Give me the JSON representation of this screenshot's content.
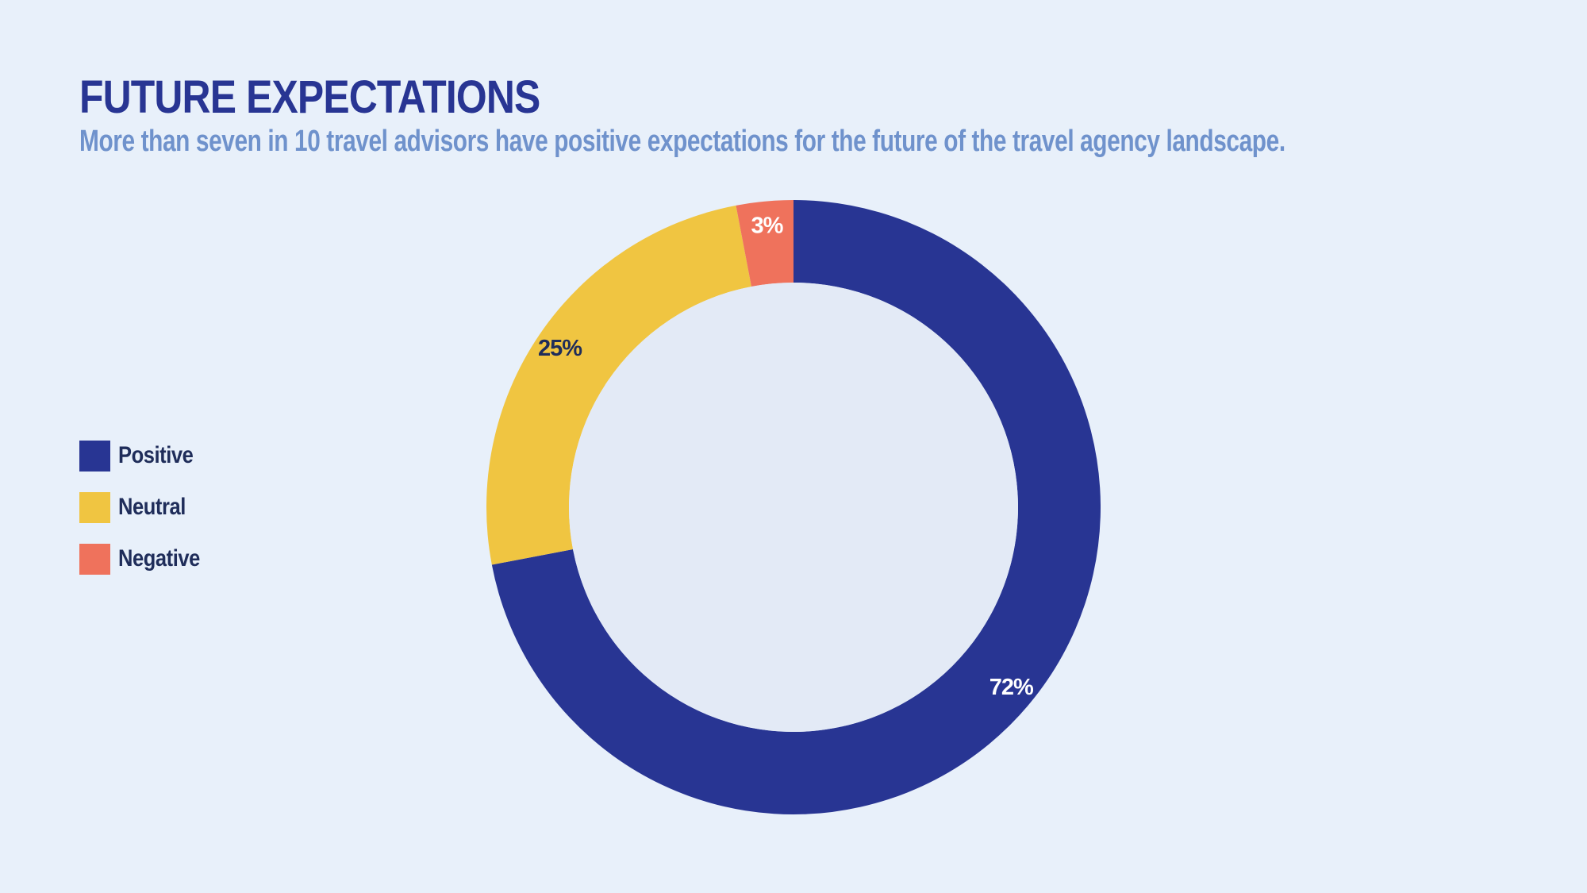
{
  "chart_data": {
    "type": "pie",
    "title": "FUTURE EXPECTATIONS",
    "subtitle": "More than seven in 10 travel advisors have positive expectations for the future of the travel agency landscape.",
    "legend_position": "left",
    "style": "donut",
    "slices": [
      {
        "label": "Positive",
        "value": 72,
        "display": "72%",
        "color": "#283593",
        "label_color": "#ffffff"
      },
      {
        "label": "Neutral",
        "value": 25,
        "display": "25%",
        "color": "#f0c541",
        "label_color": "#1f2d5a"
      },
      {
        "label": "Negative",
        "value": 3,
        "display": "3%",
        "color": "#ef725c",
        "label_color": "#ffffff"
      }
    ]
  }
}
